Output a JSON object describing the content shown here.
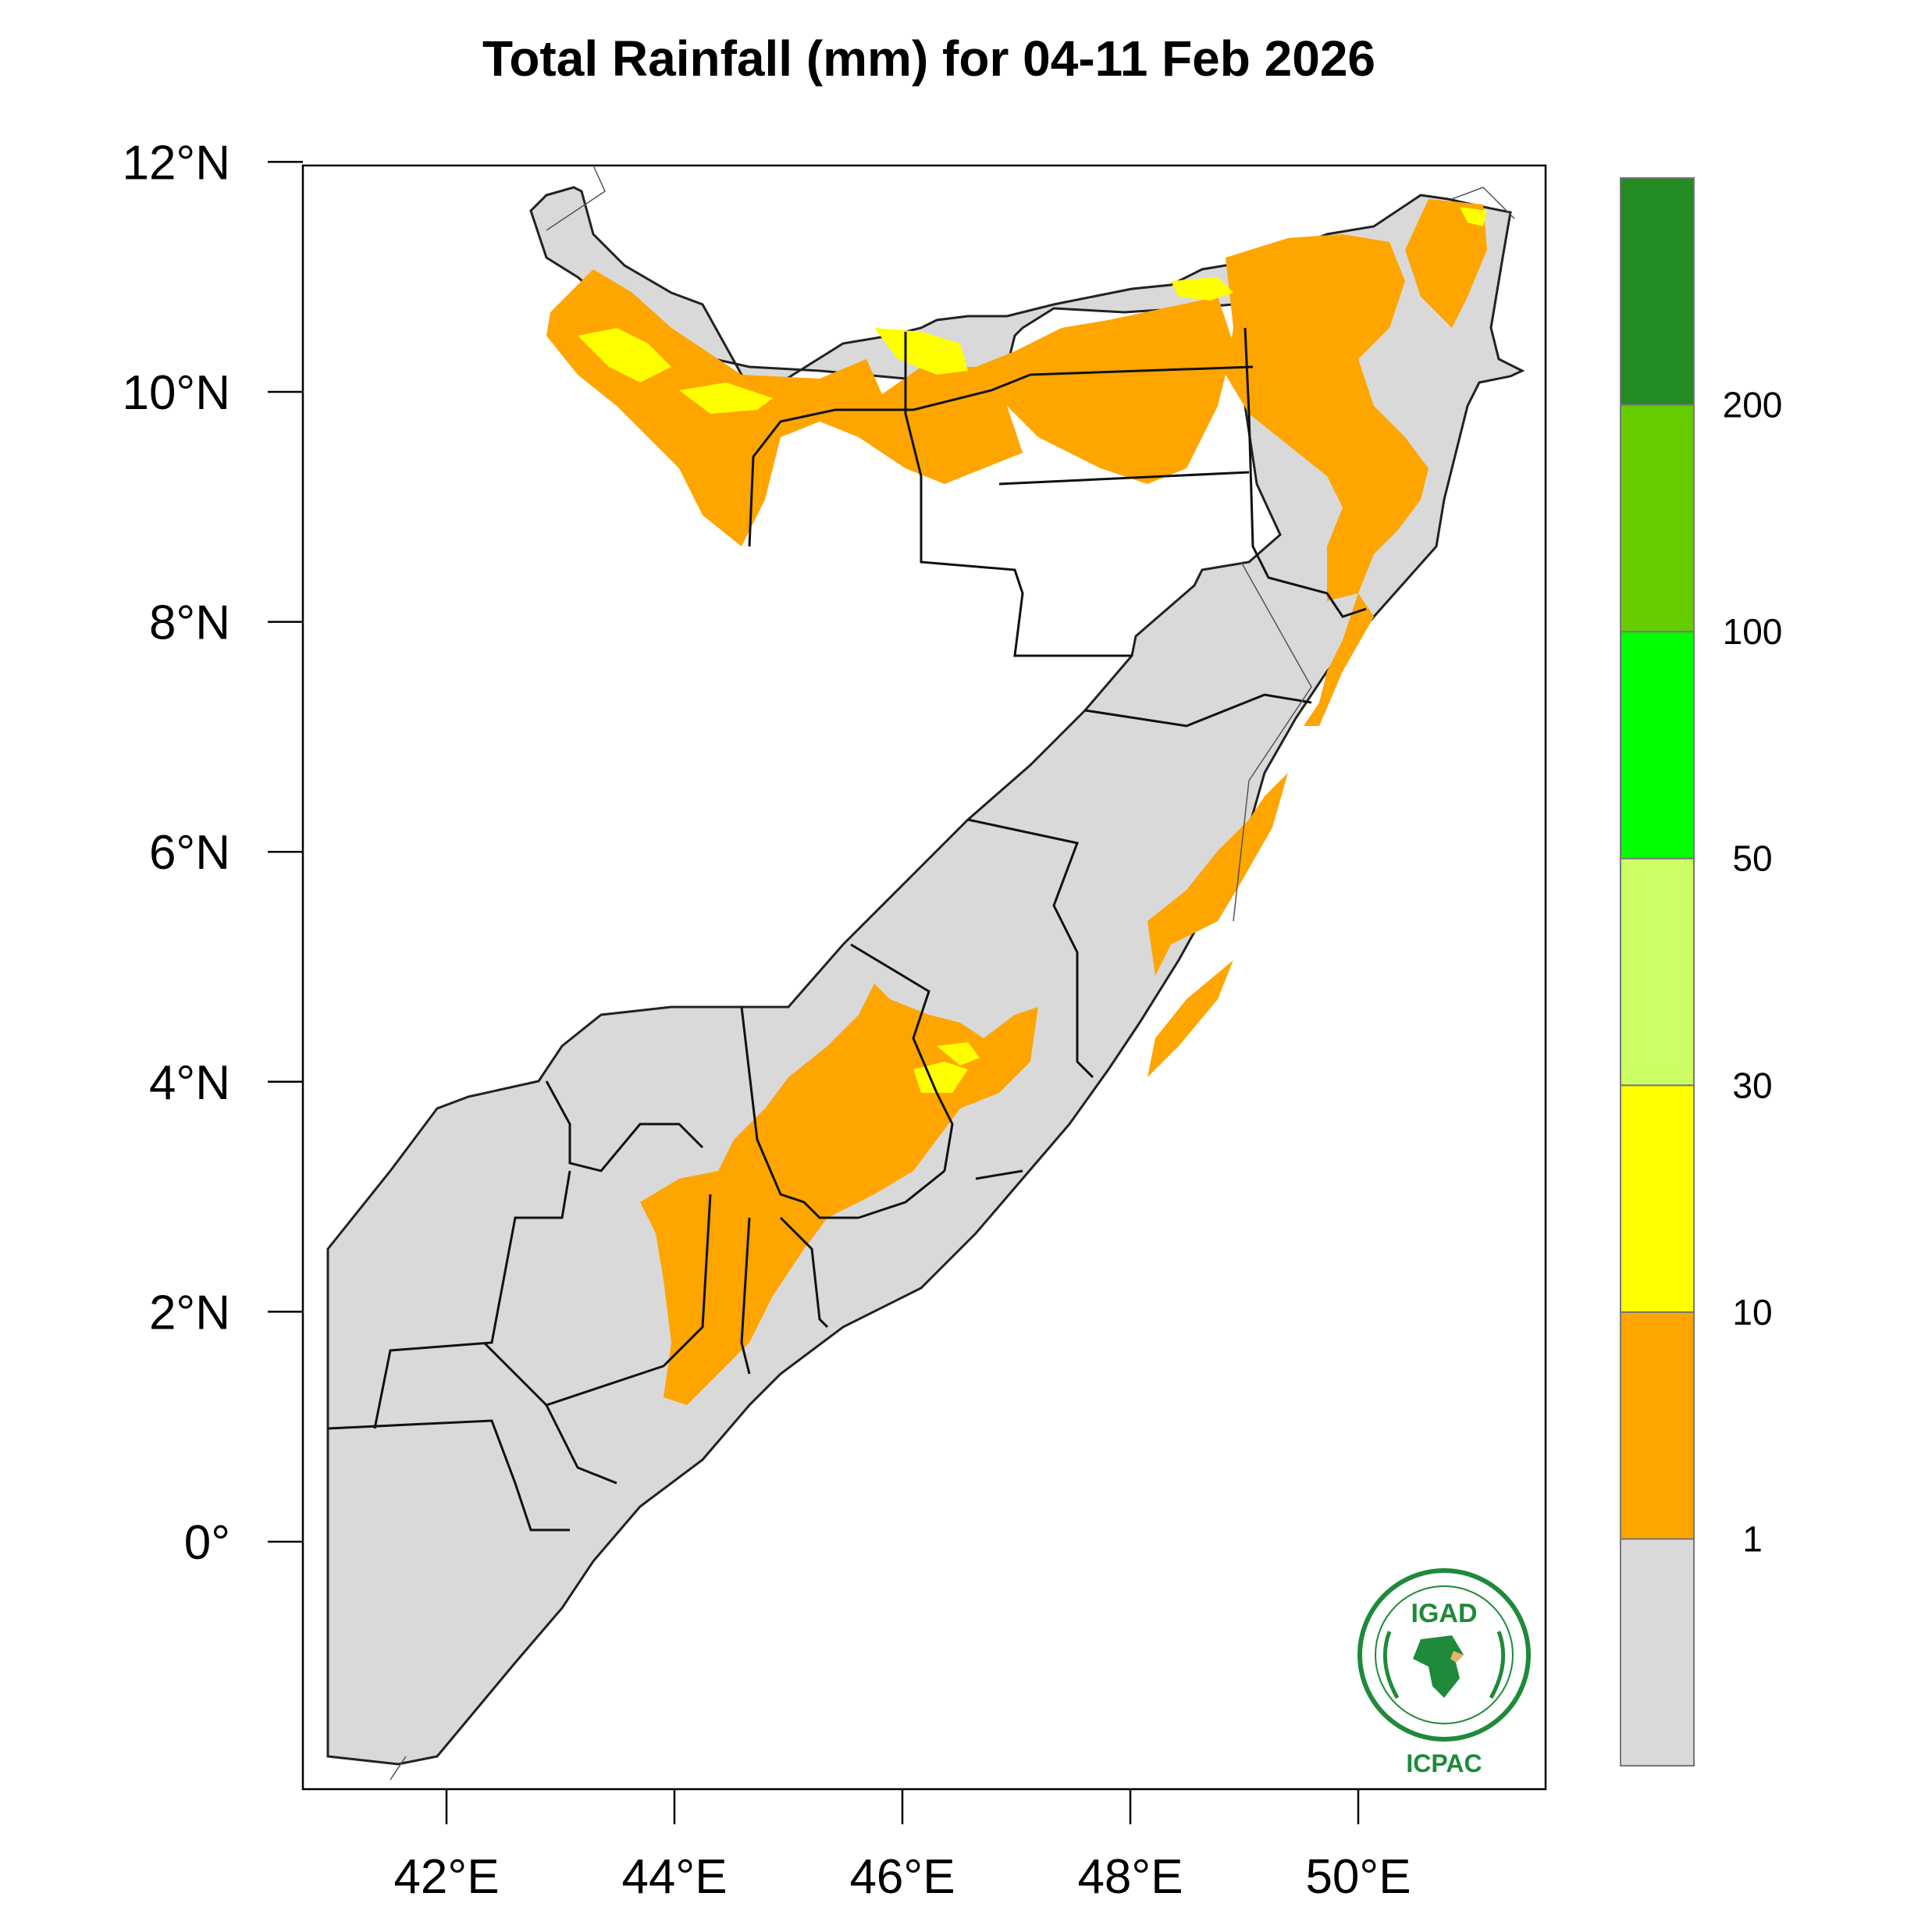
{
  "title": "Total Rainfall (mm) for 04-11 Feb 2026",
  "axes": {
    "lat_ticks": [
      {
        "value": 12,
        "label": "12°N"
      },
      {
        "value": 10,
        "label": "10°N"
      },
      {
        "value": 8,
        "label": "8°N"
      },
      {
        "value": 6,
        "label": "6°N"
      },
      {
        "value": 4,
        "label": "4°N"
      },
      {
        "value": 2,
        "label": "2°N"
      },
      {
        "value": 0,
        "label": "0°"
      }
    ],
    "lon_ticks": [
      {
        "value": 42,
        "label": "42°E"
      },
      {
        "value": 44,
        "label": "44°E"
      },
      {
        "value": 46,
        "label": "46°E"
      },
      {
        "value": 48,
        "label": "48°E"
      },
      {
        "value": 50,
        "label": "50°E"
      }
    ]
  },
  "colorbar": {
    "bins": [
      {
        "color": "#d9d9d9"
      },
      {
        "color": "#ffa500"
      },
      {
        "color": "#ffff00"
      },
      {
        "color": "#ccff66"
      },
      {
        "color": "#00ff00"
      },
      {
        "color": "#66cc00"
      },
      {
        "color": "#228b22"
      }
    ],
    "labels": [
      "1",
      "10",
      "30",
      "50",
      "100",
      "200"
    ]
  },
  "logo": {
    "top_text": "IGAD",
    "bottom_text": "ICPAC"
  },
  "colors": {
    "land_below_1": "#d9d9d9",
    "rain_1_10": "#ffa500",
    "rain_10_30": "#ffff00"
  }
}
